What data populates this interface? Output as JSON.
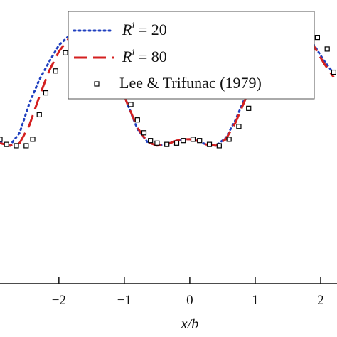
{
  "chart_data": {
    "type": "line",
    "xlabel": "x/b",
    "ylabel": "",
    "xlim": [
      -2.9,
      2.25
    ],
    "ylim": [
      -0.65,
      1.55
    ],
    "x_ticks": [
      -2,
      -1,
      0,
      1,
      2
    ],
    "x_tick_labels": [
      "−2",
      "−1",
      "0",
      "1",
      "2"
    ],
    "legend_position": "top-right",
    "grid": false,
    "series": [
      {
        "name": "R^i = 20",
        "legend_symbol": "R",
        "legend_sup": "i",
        "legend_rest": " = 20",
        "style": "dotted",
        "color": "#1f3fbf",
        "x": [
          -2.9,
          -2.75,
          -2.6,
          -2.45,
          -2.3,
          -2.15,
          -2.0,
          -1.85,
          -1.7,
          -1.55,
          -1.4,
          -1.25,
          -1.1,
          -0.95,
          -0.8,
          -0.65,
          -0.5,
          -0.35,
          -0.2,
          -0.05,
          0.0,
          0.1,
          0.25,
          0.4,
          0.55,
          0.7,
          0.85,
          1.0,
          1.15,
          1.3,
          1.45,
          1.6,
          1.75,
          1.9,
          2.05,
          2.2
        ],
        "y": [
          0.45,
          0.42,
          0.52,
          0.75,
          0.93,
          1.07,
          1.2,
          1.27,
          1.31,
          1.31,
          1.26,
          1.12,
          0.94,
          0.74,
          0.55,
          0.45,
          0.42,
          0.43,
          0.46,
          0.47,
          0.47,
          0.46,
          0.43,
          0.42,
          0.48,
          0.62,
          0.8,
          0.98,
          1.13,
          1.24,
          1.29,
          1.3,
          1.27,
          1.2,
          1.08,
          0.98
        ]
      },
      {
        "name": "R^i = 80",
        "legend_symbol": "R",
        "legend_sup": "i",
        "legend_rest": " = 80",
        "style": "dashed",
        "color": "#d42020",
        "x": [
          -2.9,
          -2.75,
          -2.6,
          -2.45,
          -2.3,
          -2.15,
          -2.0,
          -1.85,
          -1.7,
          -1.55,
          -1.4,
          -1.25,
          -1.1,
          -0.95,
          -0.8,
          -0.65,
          -0.5,
          -0.35,
          -0.2,
          -0.05,
          0.0,
          0.1,
          0.25,
          0.4,
          0.55,
          0.7,
          0.85,
          1.0,
          1.15,
          1.3,
          1.45,
          1.6,
          1.75,
          1.9,
          2.05,
          2.2
        ],
        "y": [
          0.44,
          0.42,
          0.44,
          0.58,
          0.8,
          1.0,
          1.15,
          1.25,
          1.3,
          1.31,
          1.26,
          1.12,
          0.94,
          0.74,
          0.56,
          0.45,
          0.42,
          0.43,
          0.46,
          0.47,
          0.47,
          0.46,
          0.43,
          0.42,
          0.47,
          0.6,
          0.78,
          0.97,
          1.12,
          1.23,
          1.29,
          1.3,
          1.27,
          1.19,
          1.06,
          0.95
        ]
      },
      {
        "name": "Lee & Trifunac (1979)",
        "legend_symbol": "",
        "legend_sup": "",
        "legend_rest": "Lee & Trifunac (1979)",
        "style": "markers",
        "color": "#000000",
        "x": [
          -2.9,
          -2.8,
          -2.65,
          -2.5,
          -2.4,
          -2.3,
          -2.2,
          -2.05,
          -1.9,
          -1.75,
          -1.6,
          -1.5,
          -1.4,
          -1.3,
          -1.2,
          -1.1,
          -1.0,
          -0.9,
          -0.8,
          -0.7,
          -0.6,
          -0.5,
          -0.35,
          -0.2,
          -0.1,
          0.05,
          0.15,
          0.3,
          0.45,
          0.6,
          0.75,
          0.9,
          1.05,
          1.2,
          1.35,
          1.5,
          1.65,
          1.8,
          1.95,
          2.1,
          2.2
        ],
        "y": [
          0.47,
          0.43,
          0.42,
          0.42,
          0.47,
          0.66,
          0.83,
          1.0,
          1.14,
          1.23,
          1.3,
          1.31,
          1.3,
          1.24,
          1.14,
          1.02,
          0.88,
          0.74,
          0.62,
          0.52,
          0.46,
          0.44,
          0.43,
          0.44,
          0.46,
          0.47,
          0.46,
          0.43,
          0.42,
          0.47,
          0.57,
          0.71,
          0.87,
          1.02,
          1.14,
          1.23,
          1.29,
          1.3,
          1.26,
          1.17,
          0.99
        ]
      }
    ]
  }
}
